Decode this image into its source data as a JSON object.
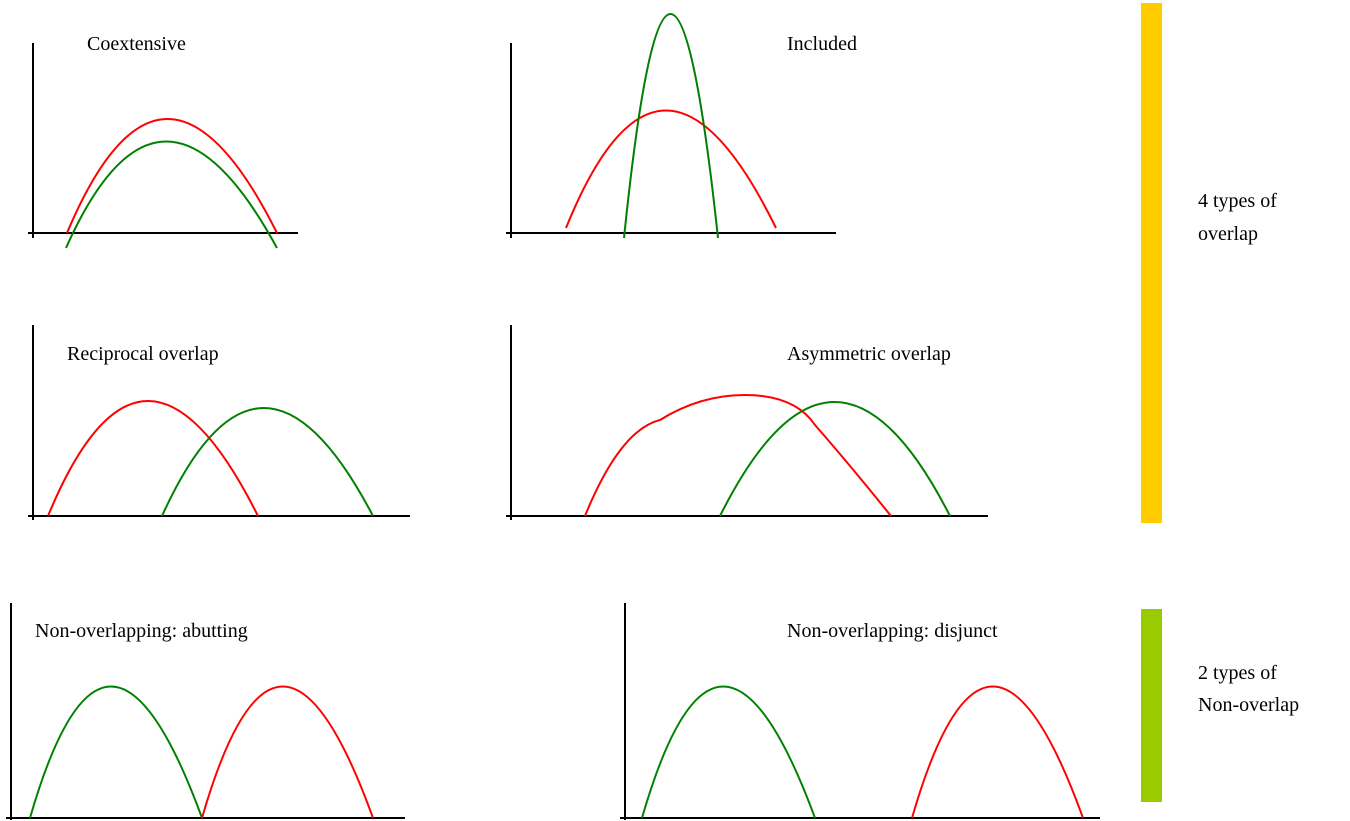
{
  "colors": {
    "red": "#ff0000",
    "green": "#008000",
    "overlap_bar": "#ffcc00",
    "nonoverlap_bar": "#99cc00"
  },
  "panels": [
    {
      "id": "coextensive",
      "title": "Coextensive"
    },
    {
      "id": "included",
      "title": "Included"
    },
    {
      "id": "reciprocal",
      "title": "Reciprocal overlap"
    },
    {
      "id": "asymmetric",
      "title": "Asymmetric overlap"
    },
    {
      "id": "abutting",
      "title": "Non-overlapping: abutting"
    },
    {
      "id": "disjunct",
      "title": "Non-overlapping: disjunct"
    }
  ],
  "groups": {
    "overlap": {
      "line1": "4 types of",
      "line2": "overlap"
    },
    "nonoverlap": {
      "line1": "2 types of",
      "line2": "Non-overlap"
    }
  }
}
